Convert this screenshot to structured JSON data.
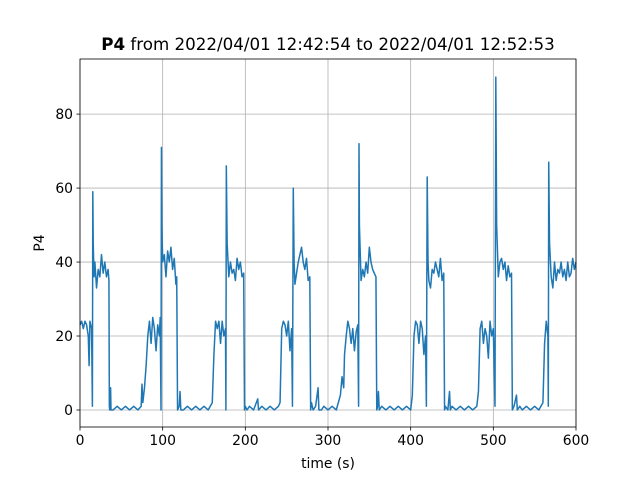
{
  "chart_data": {
    "type": "line",
    "title_bold": "P4",
    "title": "from 2022/04/01 12:42:54 to 2022/04/01 12:52:53",
    "xlabel": "time (s)",
    "ylabel": "P4",
    "xlim": [
      0,
      600
    ],
    "xticks": [
      0,
      100,
      200,
      300,
      400,
      500,
      600
    ],
    "ylim": [
      -4.6,
      94.9
    ],
    "yticks": [
      0,
      20,
      40,
      60,
      80
    ],
    "grid": true,
    "x": [
      0,
      2,
      4,
      6,
      8,
      10,
      11,
      12,
      14,
      15,
      15.5,
      16,
      17,
      18,
      20,
      22,
      24,
      26,
      28,
      30,
      32,
      34,
      35,
      35.5,
      36,
      37,
      37.5,
      40,
      45,
      50,
      55,
      60,
      65,
      70,
      74,
      75,
      76,
      78,
      80,
      82,
      84,
      86,
      88,
      90,
      92,
      94,
      96,
      97,
      98,
      98.5,
      99,
      100,
      102,
      104,
      106,
      108,
      110,
      112,
      114,
      116,
      117,
      118,
      120,
      121,
      122,
      125,
      130,
      135,
      140,
      145,
      150,
      155,
      160,
      162,
      164,
      166,
      168,
      170,
      172,
      174,
      176,
      176.5,
      177,
      178,
      180,
      182,
      184,
      186,
      188,
      190,
      192,
      194,
      196,
      198,
      199,
      200,
      202,
      205,
      210,
      215,
      216,
      220,
      225,
      230,
      235,
      240,
      242,
      244,
      246,
      248,
      250,
      252,
      254,
      256,
      257,
      258,
      259,
      260,
      262,
      264,
      266,
      268,
      270,
      272,
      274,
      276,
      278,
      279,
      280,
      282,
      285,
      288,
      289,
      292,
      295,
      300,
      305,
      310,
      315,
      317,
      319,
      320,
      322,
      324,
      326,
      328,
      330,
      332,
      334,
      336,
      337,
      337.5,
      338,
      340,
      342,
      344,
      346,
      348,
      350,
      352,
      354,
      356,
      358,
      359,
      360,
      361,
      362,
      365,
      370,
      375,
      380,
      385,
      390,
      395,
      400,
      402,
      404,
      406,
      408,
      410,
      412,
      414,
      416,
      418,
      419,
      420,
      421,
      422,
      424,
      426,
      428,
      430,
      432,
      434,
      436,
      438,
      440,
      441,
      442,
      445,
      447,
      448,
      450,
      455,
      460,
      465,
      470,
      475,
      480,
      482,
      484,
      486,
      488,
      490,
      492,
      494,
      496,
      498,
      500,
      502,
      503,
      503.5,
      504,
      506,
      508,
      510,
      512,
      514,
      516,
      518,
      520,
      522,
      523,
      525,
      528,
      529,
      532,
      535,
      540,
      545,
      550,
      555,
      560,
      562,
      564,
      566,
      566.5,
      567,
      568,
      570,
      572,
      574,
      576,
      578,
      580,
      582,
      584,
      586,
      588,
      590,
      592,
      594,
      596,
      598,
      600
    ],
    "series": [
      {
        "name": "P4",
        "color": "#1f77b4",
        "values": [
          23,
          24,
          22,
          24,
          23,
          20,
          12,
          24,
          22,
          1,
          59,
          45,
          36,
          40,
          33,
          38,
          36,
          42,
          37,
          40,
          36,
          38,
          35,
          1,
          0,
          6,
          0,
          0,
          1,
          0,
          1,
          0,
          1,
          0,
          1,
          7,
          2,
          6,
          12,
          20,
          24,
          18,
          25,
          22,
          16,
          23,
          20,
          25,
          0,
          71,
          50,
          40,
          42,
          36,
          43,
          40,
          44,
          38,
          41,
          34,
          36,
          0,
          1,
          5,
          0,
          0,
          1,
          0,
          1,
          0,
          1,
          0,
          2,
          15,
          24,
          22,
          24,
          18,
          24,
          20,
          22,
          0,
          66,
          45,
          36,
          40,
          37,
          38,
          35,
          41,
          38,
          40,
          36,
          37,
          0,
          1,
          0,
          1,
          0,
          3,
          0,
          1,
          0,
          1,
          0,
          1,
          2,
          22,
          24,
          23,
          20,
          24,
          16,
          22,
          1,
          60,
          40,
          34,
          37,
          40,
          42,
          44,
          40,
          38,
          41,
          35,
          36,
          0,
          2,
          0,
          1,
          6,
          0,
          0,
          1,
          0,
          1,
          0,
          4,
          9,
          6,
          15,
          20,
          24,
          22,
          18,
          22,
          16,
          21,
          23,
          1,
          72,
          50,
          35,
          38,
          36,
          40,
          37,
          44,
          40,
          38,
          37,
          36,
          0,
          1,
          5,
          0,
          1,
          0,
          1,
          0,
          1,
          0,
          1,
          0,
          4,
          20,
          24,
          23,
          18,
          24,
          22,
          15,
          20,
          1,
          63,
          40,
          35,
          33,
          38,
          37,
          40,
          38,
          36,
          41,
          35,
          37,
          0,
          1,
          0,
          5,
          0,
          1,
          0,
          1,
          0,
          1,
          0,
          1,
          5,
          22,
          24,
          18,
          22,
          20,
          14,
          24,
          20,
          22,
          1,
          90,
          70,
          50,
          36,
          40,
          41,
          38,
          40,
          35,
          39,
          36,
          37,
          0,
          1,
          4,
          0,
          1,
          0,
          1,
          0,
          1,
          0,
          2,
          18,
          24,
          20,
          1,
          67,
          45,
          36,
          33,
          40,
          35,
          38,
          37,
          40,
          36,
          38,
          35,
          40,
          36,
          37,
          41,
          38,
          40
        ]
      }
    ]
  }
}
